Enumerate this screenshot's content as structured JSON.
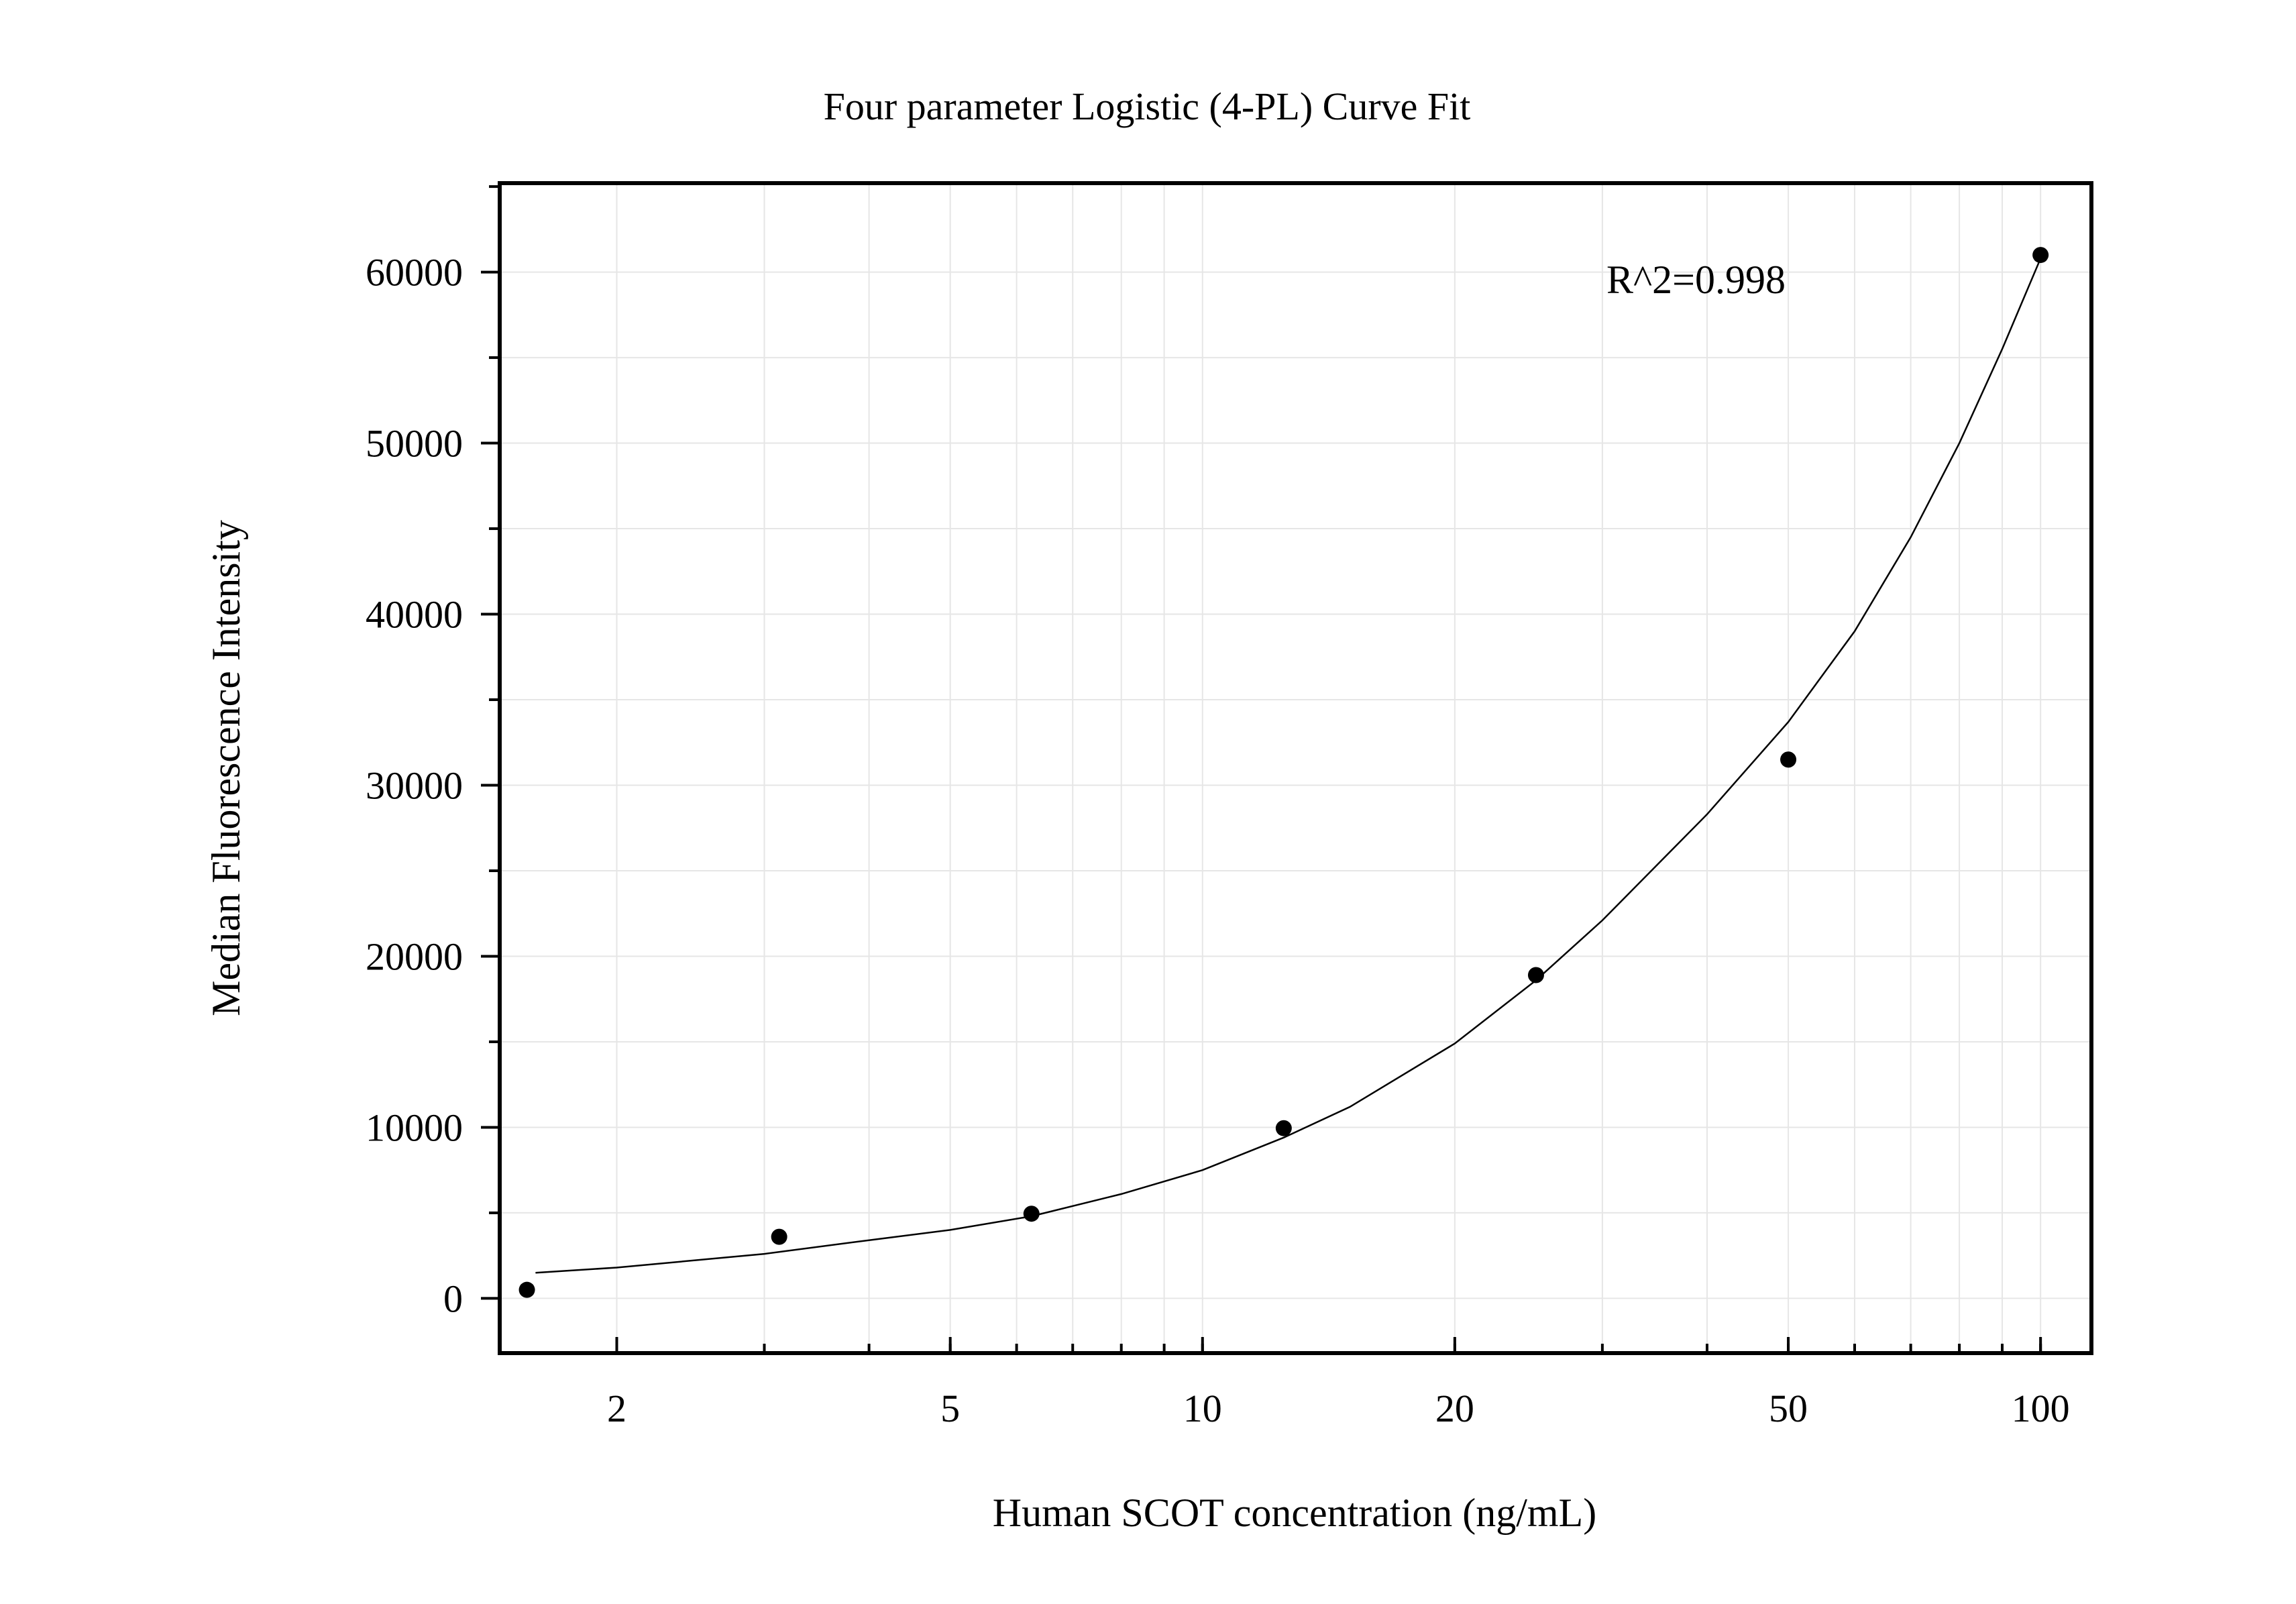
{
  "chart_data": {
    "type": "scatter",
    "title": "Four parameter Logistic (4-PL) Curve Fit",
    "xlabel": "Human SCOT concentration (ng/mL)",
    "ylabel": "Median Fluorescence Intensity",
    "x_scale": "log",
    "xlim": [
      1.45,
      115
    ],
    "ylim": [
      -3200,
      65200
    ],
    "x_ticks": [
      2,
      5,
      10,
      20,
      50,
      100
    ],
    "y_ticks": [
      0,
      10000,
      20000,
      30000,
      40000,
      50000,
      60000
    ],
    "grid": true,
    "annotation": "R^2=0.998",
    "series": [
      {
        "x": [
          1.5625,
          3.125,
          6.25,
          12.5,
          25,
          50,
          100
        ],
        "y": [
          500,
          3600,
          4950,
          9950,
          18900,
          31500,
          61000
        ]
      }
    ],
    "fit_curve": {
      "x": [
        1.6,
        2,
        3,
        4,
        5,
        6.25,
        8,
        10,
        12.5,
        15,
        20,
        25,
        30,
        40,
        50,
        60,
        70,
        80,
        90,
        100
      ],
      "y": [
        1500,
        1800,
        2600,
        3400,
        4000,
        4800,
        6100,
        7500,
        9400,
        11200,
        14900,
        18600,
        22100,
        28300,
        33700,
        39000,
        44500,
        50000,
        55500,
        60800
      ]
    }
  }
}
